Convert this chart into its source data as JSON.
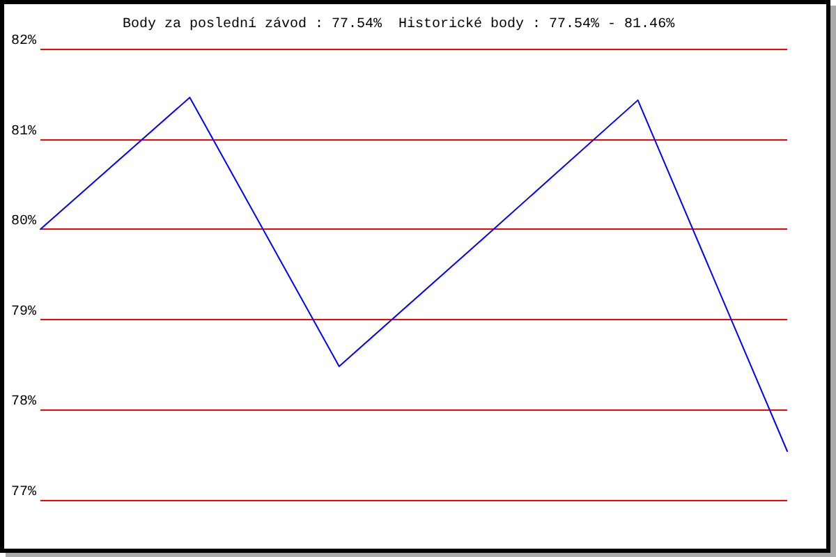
{
  "chart_data": {
    "type": "line",
    "title": "Body za poslední závod : 77.54%  Historické body : 77.54% - 81.46%",
    "categories": [
      null,
      null,
      null,
      null,
      null,
      null
    ],
    "series": [
      {
        "color": "#0000ff",
        "values": [
          80.0,
          81.46,
          78.48,
          79.95,
          81.43,
          77.54
        ]
      }
    ],
    "ylim": [
      77,
      82
    ],
    "yticks": [
      {
        "value": 77,
        "label": "77%"
      },
      {
        "value": 78,
        "label": "78%"
      },
      {
        "value": 79,
        "label": "79%"
      },
      {
        "value": 80,
        "label": "80%"
      },
      {
        "value": 81,
        "label": "81%"
      },
      {
        "value": 82,
        "label": "82%"
      }
    ],
    "grid": "y",
    "marker": "none"
  }
}
